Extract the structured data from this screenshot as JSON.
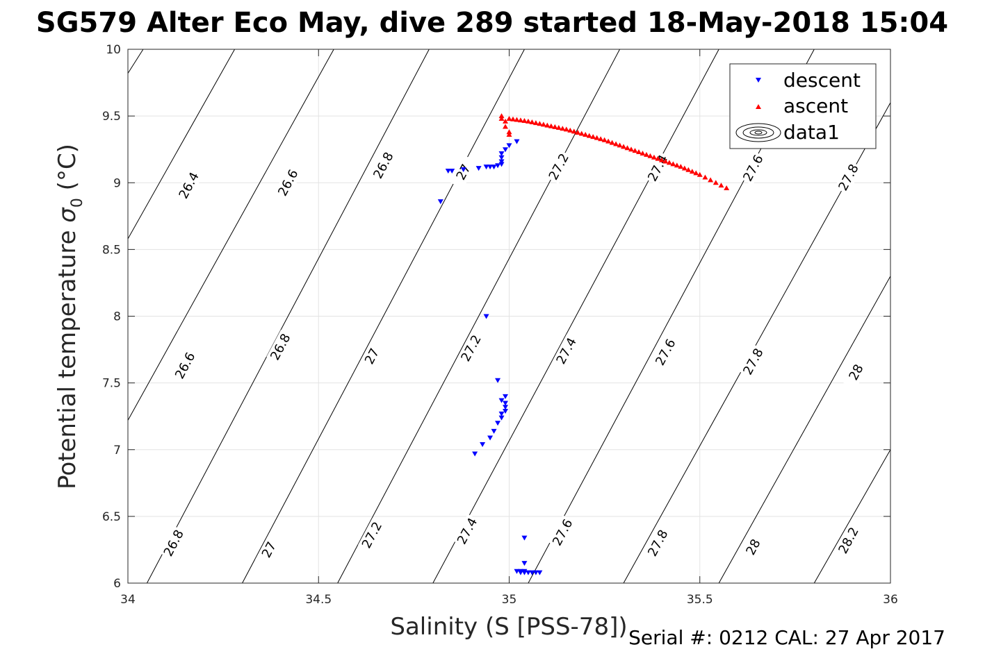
{
  "title": "SG579 Alter Eco May, dive 289 started 18-May-2018 15:04",
  "footer": "Serial #: 0212  CAL: 27 Apr 2017",
  "chart_data": {
    "type": "scatter",
    "title": "SG579 Alter Eco May, dive 289 started 18-May-2018 15:04",
    "xlabel": "Salinity (S [PSS-78])",
    "ylabel": "Potential temperature σ₀ (°C)",
    "ylabel_main": "Potential temperature ",
    "ylabel_sym": "σ",
    "ylabel_sub": "0",
    "ylabel_unit": " (°C)",
    "xlim": [
      34,
      36
    ],
    "ylim": [
      6,
      10
    ],
    "x_ticks": [
      "34",
      "34.5",
      "35",
      "35.5",
      "36"
    ],
    "y_ticks": [
      "6",
      "6.5",
      "7",
      "7.5",
      "8",
      "8.5",
      "9",
      "9.5",
      "10"
    ],
    "grid": true,
    "legend": {
      "position": "top-right",
      "entries": [
        {
          "name": "descent",
          "marker": "triangle-down",
          "color": "#0000ff"
        },
        {
          "name": "ascent",
          "marker": "triangle-up",
          "color": "#ff0000"
        },
        {
          "name": "data1",
          "marker": "contour",
          "color": "#000000"
        }
      ]
    },
    "series": [
      {
        "name": "descent",
        "marker": "triangle-down",
        "color": "#0000ff",
        "points": [
          [
            35.03,
            6.08
          ],
          [
            35.04,
            6.08
          ],
          [
            35.05,
            6.08
          ],
          [
            35.06,
            6.08
          ],
          [
            35.07,
            6.08
          ],
          [
            35.08,
            6.08
          ],
          [
            35.02,
            6.09
          ],
          [
            35.03,
            6.09
          ],
          [
            35.04,
            6.09
          ],
          [
            35.04,
            6.15
          ],
          [
            35.04,
            6.34
          ],
          [
            34.91,
            6.97
          ],
          [
            34.93,
            7.04
          ],
          [
            34.95,
            7.09
          ],
          [
            34.96,
            7.14
          ],
          [
            34.97,
            7.2
          ],
          [
            34.98,
            7.24
          ],
          [
            34.98,
            7.27
          ],
          [
            34.99,
            7.29
          ],
          [
            34.99,
            7.32
          ],
          [
            34.99,
            7.35
          ],
          [
            34.98,
            7.37
          ],
          [
            34.99,
            7.4
          ],
          [
            34.97,
            7.52
          ],
          [
            34.94,
            8.0
          ],
          [
            34.82,
            8.86
          ],
          [
            34.84,
            9.09
          ],
          [
            34.85,
            9.09
          ],
          [
            34.88,
            9.1
          ],
          [
            34.92,
            9.11
          ],
          [
            34.94,
            9.12
          ],
          [
            34.95,
            9.12
          ],
          [
            34.96,
            9.12
          ],
          [
            34.97,
            9.13
          ],
          [
            34.98,
            9.14
          ],
          [
            34.98,
            9.16
          ],
          [
            34.98,
            9.19
          ],
          [
            34.98,
            9.22
          ],
          [
            34.99,
            9.25
          ],
          [
            35.0,
            9.28
          ],
          [
            35.02,
            9.31
          ]
        ]
      },
      {
        "name": "ascent",
        "marker": "triangle-up",
        "color": "#ff0000",
        "points": [
          [
            34.98,
            9.5
          ],
          [
            34.98,
            9.48
          ],
          [
            34.99,
            9.46
          ],
          [
            34.99,
            9.42
          ],
          [
            35.0,
            9.38
          ],
          [
            35.0,
            9.36
          ],
          [
            35.0,
            9.48
          ],
          [
            35.05,
            9.46
          ],
          [
            35.1,
            9.43
          ],
          [
            35.15,
            9.4
          ],
          [
            35.2,
            9.36
          ],
          [
            35.25,
            9.32
          ],
          [
            35.3,
            9.27
          ],
          [
            35.35,
            9.22
          ],
          [
            35.4,
            9.17
          ],
          [
            35.45,
            9.12
          ],
          [
            35.5,
            9.06
          ],
          [
            35.57,
            8.96
          ]
        ]
      }
    ],
    "contour_labels": [
      {
        "label": "26.4",
        "x": 34.16,
        "y": 8.98
      },
      {
        "label": "26.6",
        "x": 34.42,
        "y": 9.0
      },
      {
        "label": "26.8",
        "x": 34.67,
        "y": 9.13
      },
      {
        "label": "27",
        "x": 34.88,
        "y": 9.08
      },
      {
        "label": "27.2",
        "x": 35.13,
        "y": 9.12
      },
      {
        "label": "27.4",
        "x": 35.39,
        "y": 9.11
      },
      {
        "label": "27.6",
        "x": 35.64,
        "y": 9.11
      },
      {
        "label": "27.8",
        "x": 35.89,
        "y": 9.04
      },
      {
        "label": "26.6",
        "x": 34.15,
        "y": 7.63
      },
      {
        "label": "26.8",
        "x": 34.4,
        "y": 7.77
      },
      {
        "label": "27",
        "x": 34.64,
        "y": 7.7
      },
      {
        "label": "27.2",
        "x": 34.9,
        "y": 7.76
      },
      {
        "label": "27.4",
        "x": 35.15,
        "y": 7.74
      },
      {
        "label": "27.6",
        "x": 35.41,
        "y": 7.73
      },
      {
        "label": "27.8",
        "x": 35.64,
        "y": 7.66
      },
      {
        "label": "28",
        "x": 35.91,
        "y": 7.58
      },
      {
        "label": "26.8",
        "x": 34.12,
        "y": 6.3
      },
      {
        "label": "27",
        "x": 34.37,
        "y": 6.25
      },
      {
        "label": "27.2",
        "x": 34.64,
        "y": 6.36
      },
      {
        "label": "27.4",
        "x": 34.89,
        "y": 6.39
      },
      {
        "label": "27.6",
        "x": 35.14,
        "y": 6.38
      },
      {
        "label": "27.8",
        "x": 35.39,
        "y": 6.3
      },
      {
        "label": "28",
        "x": 35.64,
        "y": 6.27
      },
      {
        "label": "28.2",
        "x": 35.89,
        "y": 6.32
      }
    ],
    "contour_lines": [
      {
        "x0": 34.0,
        "y0": 9.82,
        "x1": 34.04,
        "y1": 10.0
      },
      {
        "x0": 34.0,
        "y0": 8.58,
        "x1": 34.28,
        "y1": 10.0
      },
      {
        "x0": 34.0,
        "y0": 7.22,
        "x1": 34.54,
        "y1": 10.0
      },
      {
        "x0": 34.05,
        "y0": 6.0,
        "x1": 34.79,
        "y1": 10.0
      },
      {
        "x0": 34.3,
        "y0": 6.0,
        "x1": 35.04,
        "y1": 10.0
      },
      {
        "x0": 34.55,
        "y0": 6.0,
        "x1": 35.29,
        "y1": 10.0
      },
      {
        "x0": 34.8,
        "y0": 6.0,
        "x1": 35.55,
        "y1": 10.0
      },
      {
        "x0": 35.05,
        "y0": 6.0,
        "x1": 35.8,
        "y1": 10.0
      },
      {
        "x0": 35.3,
        "y0": 6.0,
        "x1": 36.0,
        "y1": 9.6
      },
      {
        "x0": 35.55,
        "y0": 6.0,
        "x1": 36.0,
        "y1": 8.3
      },
      {
        "x0": 35.8,
        "y0": 6.0,
        "x1": 36.0,
        "y1": 7.0
      }
    ]
  }
}
